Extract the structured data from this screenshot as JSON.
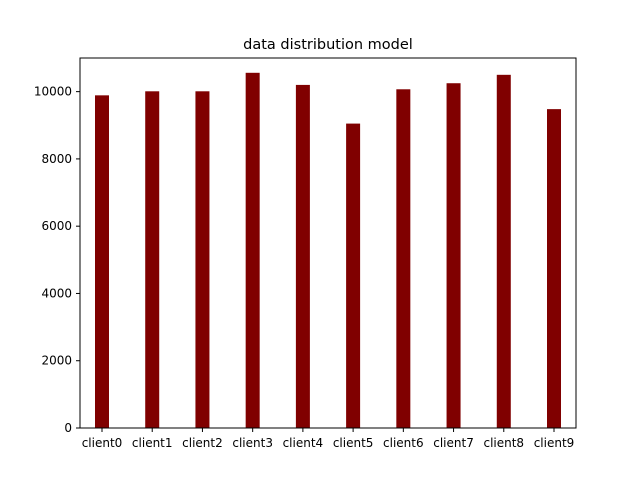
{
  "chart_data": {
    "type": "bar",
    "title": "data distribution model",
    "xlabel": "",
    "ylabel": "",
    "categories": [
      "client0",
      "client1",
      "client2",
      "client3",
      "client4",
      "client5",
      "client6",
      "client7",
      "client8",
      "client9"
    ],
    "values": [
      9890,
      10010,
      10010,
      10560,
      10200,
      9050,
      10070,
      10250,
      10500,
      9480
    ],
    "ylim": [
      0,
      11000
    ],
    "yticks": [
      0,
      2000,
      4000,
      6000,
      8000,
      10000
    ],
    "bar_color": "#800000",
    "grid": false,
    "legend": "none"
  }
}
